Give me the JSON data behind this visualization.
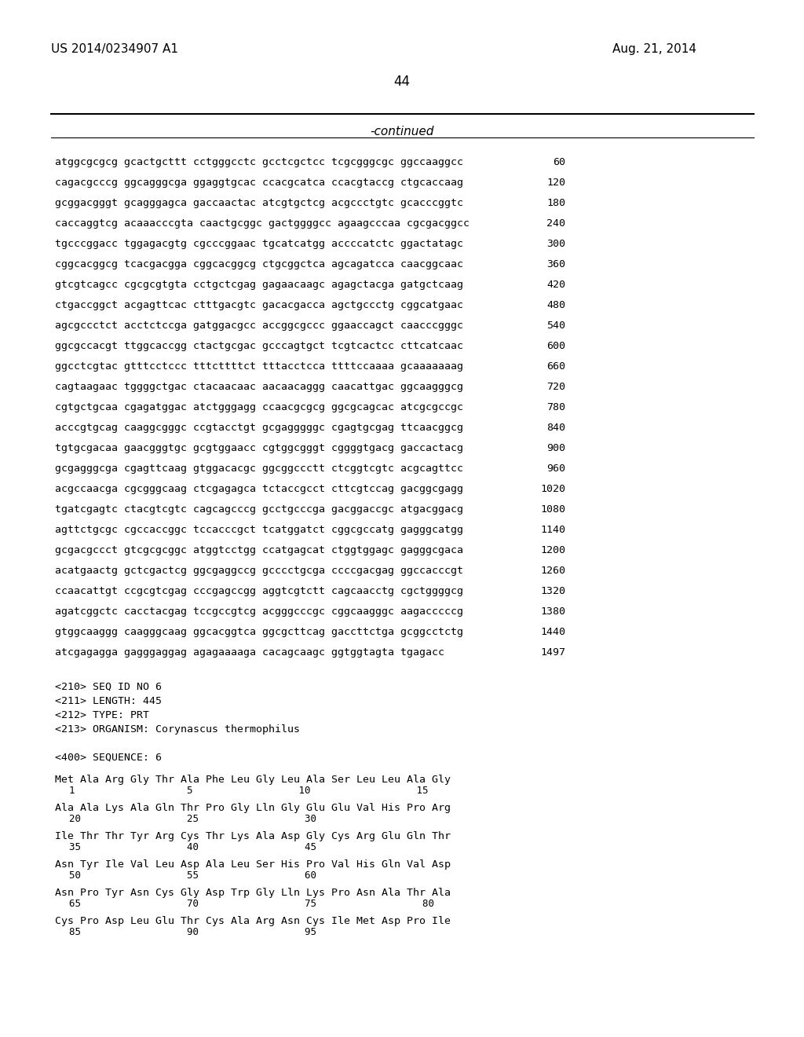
{
  "header_left": "US 2014/0234907 A1",
  "header_right": "Aug. 21, 2014",
  "page_number": "44",
  "continued_label": "-continued",
  "background_color": "#ffffff",
  "text_color": "#000000",
  "sequence_lines": [
    [
      "atggcgcgcg gcactgcttt cctgggcctc gcctcgctcc tcgcgggcgc ggccaaggcc",
      "60"
    ],
    [
      "cagacgcccg ggcagggcga ggaggtgcac ccacgcatca ccacgtaccg ctgcaccaag",
      "120"
    ],
    [
      "gcggacgggt gcagggagca gaccaactac atcgtgctcg acgccctgtc gcacccggtc",
      "180"
    ],
    [
      "caccaggtcg acaaacccgta caactgcggc gactggggcc agaagcccaa cgcgacggcc",
      "240"
    ],
    [
      "tgcccggacc tggagacgtg cgcccggaac tgcatcatgg accccatctc ggactatagc",
      "300"
    ],
    [
      "cggcacggcg tcacgacgga cggcacggcg ctgcggctca agcagatcca caacggcaac",
      "360"
    ],
    [
      "gtcgtcagcc cgcgcgtgta cctgctcgag gagaacaagc agagctacga gatgctcaag",
      "420"
    ],
    [
      "ctgaccggct acgagttcac ctttgacgtc gacacgacca agctgccctg cggcatgaac",
      "480"
    ],
    [
      "agcgccctct acctctccga gatggacgcc accggcgccc ggaaccagct caacccgggc",
      "540"
    ],
    [
      "ggcgccacgt ttggcaccgg ctactgcgac gcccagtgct tcgtcactcc cttcatcaac",
      "600"
    ],
    [
      "ggcctcgtac gtttcctccc tttcttttct tttacctcca ttttccaaaa gcaaaaaaag",
      "660"
    ],
    [
      "cagtaagaac tggggctgac ctacaacaac aacaacaggg caacattgac ggcaagggcg",
      "720"
    ],
    [
      "cgtgctgcaa cgagatggac atctgggagg ccaacgcgcg ggcgcagcac atcgcgccgc",
      "780"
    ],
    [
      "acccgtgcag caaggcgggc ccgtacctgt gcgagggggc cgagtgcgag ttcaacggcg",
      "840"
    ],
    [
      "tgtgcgacaa gaacgggtgc gcgtggaacc cgtggcgggt cggggtgacg gaccactacg",
      "900"
    ],
    [
      "gcgagggcga cgagttcaag gtggacacgc ggcggccctt ctcggtcgtc acgcagttcc",
      "960"
    ],
    [
      "acgccaacga cgcgggcaag ctcgagagca tctaccgcct cttcgtccag gacggcgagg",
      "1020"
    ],
    [
      "tgatcgagtc ctacgtcgtc cagcagcccg gcctgcccga gacggaccgc atgacggacg",
      "1080"
    ],
    [
      "agttctgcgc cgccaccggc tccacccgct tcatggatct cggcgccatg gagggcatgg",
      "1140"
    ],
    [
      "gcgacgccct gtcgcgcggc atggtcctgg ccatgagcat ctggtggagc gagggcgaca",
      "1200"
    ],
    [
      "acatgaactg gctcgactcg ggcgaggccg gcccctgcga ccccgacgag ggccacccgt",
      "1260"
    ],
    [
      "ccaacattgt ccgcgtcgag cccgagccgg aggtcgtctt cagcaacctg cgctggggcg",
      "1320"
    ],
    [
      "agatcggctc cacctacgag tccgccgtcg acgggcccgc cggcaagggc aagacccccg",
      "1380"
    ],
    [
      "gtggcaaggg caagggcaag ggcacggtca ggcgcttcag gaccttctga gcggcctctg",
      "1440"
    ],
    [
      "atcgagagga gagggaggag agagaaaaga cacagcaagc ggtggtagta tgagacc",
      "1497"
    ]
  ],
  "metadata_lines": [
    "<210> SEQ ID NO 6",
    "<211> LENGTH: 445",
    "<212> TYPE: PRT",
    "<213> ORGANISM: Corynascus thermophilus",
    "",
    "<400> SEQUENCE: 6"
  ],
  "amino_acid_lines": [
    {
      "sequence": "Met Ala Arg Gly Thr Ala Phe Leu Gly Leu Ala Ser Leu Leu Ala Gly",
      "numbers": "1                   5                  10                  15"
    },
    {
      "sequence": "Ala Ala Lys Ala Gln Thr Pro Gly Lln Gly Glu Glu Val His Pro Arg",
      "numbers": "20                  25                  30"
    },
    {
      "sequence": "Ile Thr Thr Tyr Arg Cys Thr Lys Ala Asp Gly Cys Arg Glu Gln Thr",
      "numbers": "35                  40                  45"
    },
    {
      "sequence": "Asn Tyr Ile Val Leu Asp Ala Leu Ser His Pro Val His Gln Val Asp",
      "numbers": "50                  55                  60"
    },
    {
      "sequence": "Asn Pro Tyr Asn Cys Gly Asp Trp Gly Lln Lys Pro Asn Ala Thr Ala",
      "numbers": "65                  70                  75                  80"
    },
    {
      "sequence": "Cys Pro Asp Leu Glu Thr Cys Ala Arg Asn Cys Ile Met Asp Pro Ile",
      "numbers": "85                  90                  95"
    }
  ]
}
